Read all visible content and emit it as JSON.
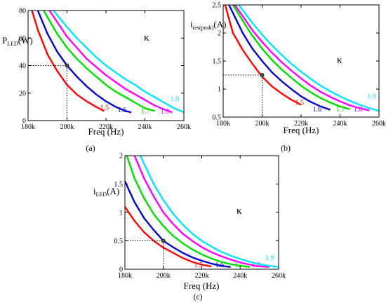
{
  "figure": {
    "kappa_symbol": "κ",
    "color_map": {
      "1.5": "#ff0000",
      "1.6": "#0000cc",
      "1.7": "#00dd00",
      "1.8": "#ff00ff",
      "1.9": "#00e5ff"
    }
  },
  "chart_data": [
    {
      "type": "line",
      "panel": "(a)",
      "ylabel_main": "P",
      "ylabel_sub": "LED",
      "ylabel_unit": "(W)",
      "xlabel": "Freq (Hz)",
      "xlim": [
        180,
        260
      ],
      "ylim": [
        0,
        80
      ],
      "xticks": [
        180,
        200,
        220,
        240,
        260
      ],
      "xtick_labels": [
        "180k",
        "200k",
        "220k",
        "240k",
        "260k"
      ],
      "yticks": [
        0,
        20,
        40,
        60,
        80
      ],
      "ytick_labels": [
        "0",
        "20",
        "40",
        "60",
        "80"
      ],
      "marker": {
        "x": 200,
        "y": 40
      },
      "series": [
        {
          "name": "1.5",
          "color": "#ff0000",
          "label_at": [
            217,
            8
          ],
          "points": [
            [
              182,
              80
            ],
            [
              185,
              66
            ],
            [
              190,
              48
            ],
            [
              195,
              36
            ],
            [
              200,
              26
            ],
            [
              205,
              19
            ],
            [
              210,
              14
            ],
            [
              215,
              10
            ],
            [
              219,
              7
            ]
          ]
        },
        {
          "name": "1.6",
          "color": "#0000cc",
          "label_at": [
            226,
            6
          ],
          "points": [
            [
              185,
              80
            ],
            [
              190,
              63
            ],
            [
              195,
              50
            ],
            [
              200,
              40
            ],
            [
              205,
              32
            ],
            [
              210,
              25
            ],
            [
              215,
              19
            ],
            [
              220,
              14
            ],
            [
              225,
              10
            ],
            [
              230,
              7
            ],
            [
              233,
              6
            ]
          ]
        },
        {
          "name": "1.7",
          "color": "#00dd00",
          "label_at": [
            238,
            5
          ],
          "points": [
            [
              188,
              80
            ],
            [
              195,
              63
            ],
            [
              200,
              53
            ],
            [
              205,
              45
            ],
            [
              210,
              38
            ],
            [
              215,
              32
            ],
            [
              220,
              26
            ],
            [
              225,
              21
            ],
            [
              230,
              17
            ],
            [
              235,
              13
            ],
            [
              240,
              9
            ],
            [
              245,
              7
            ]
          ]
        },
        {
          "name": "1.8",
          "color": "#ff00ff",
          "label_at": [
            248,
            5
          ],
          "points": [
            [
              191,
              80
            ],
            [
              200,
              61
            ],
            [
              205,
              53
            ],
            [
              210,
              45
            ],
            [
              215,
              39
            ],
            [
              220,
              33
            ],
            [
              225,
              28
            ],
            [
              230,
              23
            ],
            [
              235,
              19
            ],
            [
              240,
              15
            ],
            [
              245,
              11
            ],
            [
              250,
              8
            ],
            [
              254,
              6
            ]
          ]
        },
        {
          "name": "1.9",
          "color": "#00e5ff",
          "label_at": [
            253,
            14
          ],
          "points": [
            [
              193,
              80
            ],
            [
              200,
              68
            ],
            [
              205,
              60
            ],
            [
              210,
              53
            ],
            [
              215,
              46
            ],
            [
              220,
              40
            ],
            [
              225,
              35
            ],
            [
              230,
              30
            ],
            [
              235,
              26
            ],
            [
              240,
              21
            ],
            [
              245,
              17
            ],
            [
              250,
              13
            ],
            [
              255,
              9
            ],
            [
              260,
              6
            ]
          ]
        }
      ]
    },
    {
      "type": "line",
      "panel": "(b)",
      "ylabel_main": "i",
      "ylabel_sub": "res(peak)",
      "ylabel_unit": "(A)",
      "xlabel": "Freq (Hz)",
      "xlim": [
        180,
        260
      ],
      "ylim": [
        0.5,
        2.5
      ],
      "xticks": [
        180,
        200,
        220,
        240,
        260
      ],
      "xtick_labels": [
        "180k",
        "200k",
        "220k",
        "240k",
        "260k"
      ],
      "yticks": [
        0.5,
        1,
        1.5,
        2,
        2.5
      ],
      "ytick_labels": [
        "0.5",
        "1",
        "1.5",
        "2",
        "2.5"
      ],
      "marker": {
        "x": 200,
        "y": 1.25
      },
      "series": [
        {
          "name": "1.5",
          "color": "#ff0000",
          "label_at": [
            217,
            0.72
          ],
          "points": [
            [
              181,
              2.5
            ],
            [
              185,
              2.0
            ],
            [
              190,
              1.7
            ],
            [
              195,
              1.45
            ],
            [
              200,
              1.22
            ],
            [
              205,
              1.05
            ],
            [
              210,
              0.92
            ],
            [
              215,
              0.81
            ],
            [
              220,
              0.72
            ]
          ]
        },
        {
          "name": "1.6",
          "color": "#0000cc",
          "label_at": [
            226,
            0.6
          ],
          "points": [
            [
              183,
              2.5
            ],
            [
              190,
              2.0
            ],
            [
              195,
              1.72
            ],
            [
              200,
              1.5
            ],
            [
              205,
              1.3
            ],
            [
              210,
              1.14
            ],
            [
              215,
              1.0
            ],
            [
              220,
              0.87
            ],
            [
              225,
              0.77
            ],
            [
              230,
              0.69
            ],
            [
              235,
              0.63
            ]
          ]
        },
        {
          "name": "1.7",
          "color": "#00dd00",
          "label_at": [
            238,
            0.6
          ],
          "points": [
            [
              185,
              2.5
            ],
            [
              190,
              2.22
            ],
            [
              195,
              1.95
            ],
            [
              200,
              1.72
            ],
            [
              205,
              1.52
            ],
            [
              210,
              1.35
            ],
            [
              215,
              1.2
            ],
            [
              220,
              1.06
            ],
            [
              225,
              0.94
            ],
            [
              230,
              0.84
            ],
            [
              235,
              0.76
            ],
            [
              240,
              0.69
            ],
            [
              245,
              0.64
            ]
          ]
        },
        {
          "name": "1.8",
          "color": "#ff00ff",
          "label_at": [
            247,
            0.6
          ],
          "points": [
            [
              186,
              2.5
            ],
            [
              190,
              2.3
            ],
            [
              195,
              2.05
            ],
            [
              200,
              1.84
            ],
            [
              205,
              1.65
            ],
            [
              210,
              1.48
            ],
            [
              215,
              1.33
            ],
            [
              220,
              1.19
            ],
            [
              225,
              1.06
            ],
            [
              230,
              0.95
            ],
            [
              235,
              0.86
            ],
            [
              240,
              0.78
            ],
            [
              245,
              0.71
            ],
            [
              250,
              0.66
            ],
            [
              255,
              0.62
            ]
          ]
        },
        {
          "name": "1.9",
          "color": "#00e5ff",
          "label_at": [
            254,
            0.83
          ],
          "points": [
            [
              188,
              2.5
            ],
            [
              195,
              2.18
            ],
            [
              200,
              1.97
            ],
            [
              205,
              1.78
            ],
            [
              210,
              1.61
            ],
            [
              215,
              1.45
            ],
            [
              220,
              1.31
            ],
            [
              225,
              1.18
            ],
            [
              230,
              1.06
            ],
            [
              235,
              0.96
            ],
            [
              240,
              0.87
            ],
            [
              245,
              0.79
            ],
            [
              250,
              0.72
            ],
            [
              255,
              0.66
            ],
            [
              260,
              0.61
            ]
          ]
        }
      ]
    },
    {
      "type": "line",
      "panel": "(c)",
      "ylabel_main": "i",
      "ylabel_sub": "LED",
      "ylabel_unit": "(A)",
      "xlabel": "Freq (Hz)",
      "xlim": [
        180,
        260
      ],
      "ylim": [
        0,
        2
      ],
      "xticks": [
        180,
        200,
        220,
        240,
        260
      ],
      "xtick_labels": [
        "180k",
        "200k",
        "220k",
        "240k",
        "260k"
      ],
      "yticks": [
        0,
        0.5,
        1,
        1.5,
        2
      ],
      "ytick_labels": [
        "0",
        "0.5",
        "1",
        "1.5",
        "2"
      ],
      "marker": {
        "x": 200,
        "y": 0.5
      },
      "series": [
        {
          "name": "1.5",
          "color": "#ff0000",
          "label_at": [
            216,
            0.04
          ],
          "points": [
            [
              180,
              1.1
            ],
            [
              185,
              0.85
            ],
            [
              190,
              0.65
            ],
            [
              195,
              0.5
            ],
            [
              200,
              0.38
            ],
            [
              205,
              0.29
            ],
            [
              210,
              0.2
            ],
            [
              215,
              0.13
            ],
            [
              220,
              0.08
            ],
            [
              225,
              0.05
            ]
          ]
        },
        {
          "name": "1.6",
          "color": "#0000cc",
          "label_at": [
            227,
            0.04
          ],
          "points": [
            [
              180,
              1.55
            ],
            [
              185,
              1.18
            ],
            [
              190,
              0.9
            ],
            [
              195,
              0.69
            ],
            [
              200,
              0.5
            ],
            [
              205,
              0.39
            ],
            [
              210,
              0.29
            ],
            [
              215,
              0.21
            ],
            [
              220,
              0.15
            ],
            [
              225,
              0.1
            ],
            [
              230,
              0.06
            ],
            [
              235,
              0.04
            ]
          ]
        },
        {
          "name": "1.7",
          "color": "#00dd00",
          "label_at": [
            237,
            0.04
          ],
          "points": [
            [
              181,
              2.0
            ],
            [
              185,
              1.6
            ],
            [
              190,
              1.25
            ],
            [
              195,
              0.97
            ],
            [
              200,
              0.76
            ],
            [
              205,
              0.59
            ],
            [
              210,
              0.46
            ],
            [
              215,
              0.35
            ],
            [
              220,
              0.26
            ],
            [
              225,
              0.19
            ],
            [
              230,
              0.13
            ],
            [
              235,
              0.09
            ],
            [
              240,
              0.06
            ],
            [
              245,
              0.04
            ]
          ]
        },
        {
          "name": "1.8",
          "color": "#ff00ff",
          "label_at": [
            246,
            0.04
          ],
          "points": [
            [
              185,
              2.0
            ],
            [
              190,
              1.6
            ],
            [
              195,
              1.28
            ],
            [
              200,
              1.0
            ],
            [
              205,
              0.8
            ],
            [
              210,
              0.63
            ],
            [
              215,
              0.5
            ],
            [
              220,
              0.39
            ],
            [
              225,
              0.3
            ],
            [
              230,
              0.23
            ],
            [
              235,
              0.17
            ],
            [
              240,
              0.12
            ],
            [
              245,
              0.08
            ],
            [
              250,
              0.05
            ],
            [
              255,
              0.04
            ]
          ]
        },
        {
          "name": "1.9",
          "color": "#00e5ff",
          "label_at": [
            253,
            0.16
          ],
          "points": [
            [
              188,
              2.0
            ],
            [
              195,
              1.5
            ],
            [
              200,
              1.22
            ],
            [
              205,
              0.98
            ],
            [
              210,
              0.79
            ],
            [
              215,
              0.63
            ],
            [
              220,
              0.5
            ],
            [
              225,
              0.4
            ],
            [
              230,
              0.31
            ],
            [
              235,
              0.24
            ],
            [
              240,
              0.18
            ],
            [
              245,
              0.13
            ],
            [
              250,
              0.09
            ],
            [
              255,
              0.06
            ],
            [
              260,
              0.04
            ]
          ]
        }
      ]
    }
  ]
}
